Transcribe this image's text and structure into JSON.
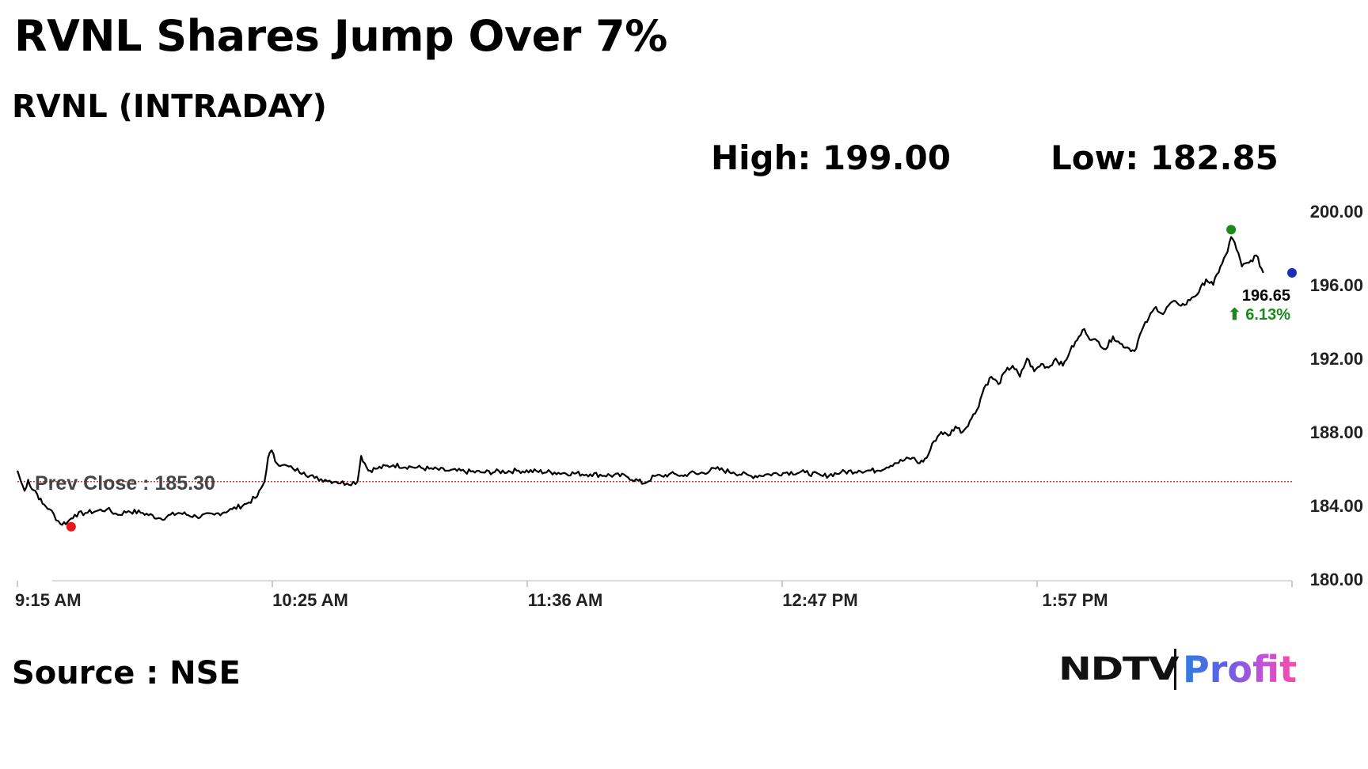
{
  "headline": "RVNL Shares Jump Over 7%",
  "subtitle": "RVNL (INTRADAY)",
  "stats": {
    "high": "High: 199.00",
    "low": "Low: 182.85"
  },
  "source": "Source : NSE",
  "logo": {
    "left": "NDTV",
    "right": "Profit",
    "colors": [
      "#2f7de1",
      "#c64fd8",
      "#ff4aa8"
    ]
  },
  "chart_data": {
    "type": "line",
    "title": "",
    "xlabel": "",
    "ylabel": "",
    "x_ticks": [
      "9:15 AM",
      "10:25 AM",
      "11:36 AM",
      "12:47 PM",
      "1:57 PM"
    ],
    "y_ticks": [
      "200.00",
      "196.00",
      "192.00",
      "188.00",
      "184.00",
      "180.00"
    ],
    "ylim": [
      180,
      200
    ],
    "xlim_minutes_after_open": [
      0,
      356
    ],
    "grid": false,
    "line_color": "#000000",
    "series": [
      {
        "x": [
          0,
          1,
          2,
          3,
          4,
          5,
          7,
          9,
          12,
          14,
          16,
          19,
          22,
          25,
          28,
          31,
          35,
          40,
          45,
          50,
          55,
          60,
          64,
          67,
          69,
          70,
          71,
          72,
          74,
          77,
          80,
          83,
          86,
          89,
          92,
          95,
          96,
          97,
          98,
          100,
          105,
          110,
          115,
          120,
          130,
          140,
          150,
          160,
          170,
          175,
          178,
          180,
          182,
          184,
          186,
          188,
          190,
          195,
          200,
          205,
          210,
          215,
          220,
          225,
          230,
          235,
          240,
          245,
          250,
          252,
          254,
          256,
          258,
          260,
          262,
          264,
          266,
          268,
          270,
          272,
          274,
          276,
          278,
          280,
          282,
          284,
          286,
          288,
          290,
          292,
          294,
          296,
          298,
          300,
          302,
          304,
          306,
          308,
          310,
          312,
          314,
          316,
          318,
          320,
          322,
          324,
          326,
          328,
          330,
          332,
          334,
          336,
          338,
          339,
          340,
          342,
          344,
          346,
          348
        ],
        "y": [
          185.9,
          185.3,
          184.8,
          185.4,
          184.9,
          184.8,
          184.1,
          183.8,
          183.0,
          183.1,
          183.5,
          183.6,
          183.7,
          183.8,
          183.5,
          183.7,
          183.6,
          183.3,
          183.6,
          183.4,
          183.5,
          183.8,
          184.1,
          184.5,
          185.3,
          186.6,
          187.0,
          186.4,
          186.2,
          186.0,
          185.8,
          185.5,
          185.4,
          185.3,
          185.2,
          185.3,
          186.7,
          186.3,
          185.9,
          186.0,
          186.2,
          186.1,
          186.0,
          185.9,
          185.8,
          185.9,
          185.8,
          185.7,
          185.6,
          185.2,
          185.6,
          185.6,
          185.7,
          185.7,
          185.6,
          185.8,
          185.7,
          186.0,
          185.8,
          185.6,
          185.7,
          185.8,
          185.8,
          185.6,
          185.8,
          185.9,
          185.9,
          186.3,
          186.6,
          186.3,
          186.6,
          187.5,
          188.0,
          187.8,
          188.3,
          188.0,
          188.6,
          189.2,
          190.4,
          191.0,
          190.6,
          191.3,
          191.6,
          191.0,
          192.0,
          191.3,
          191.7,
          191.5,
          192.0,
          191.6,
          192.4,
          193.0,
          193.6,
          193.0,
          192.9,
          192.5,
          193.2,
          192.8,
          192.6,
          192.4,
          193.5,
          194.2,
          194.8,
          194.4,
          195.0,
          195.0,
          194.9,
          195.3,
          195.6,
          196.3,
          196.0,
          197.0,
          197.8,
          198.6,
          198.3,
          197.0,
          197.2,
          197.6,
          196.65
        ]
      }
    ],
    "prev_close": {
      "label": "Prev Close : 185.30",
      "value": 185.3,
      "color": "#b22222"
    },
    "markers": [
      {
        "name": "low-marker",
        "x": 15,
        "y": 182.85,
        "color": "#e8191e"
      },
      {
        "name": "high-marker",
        "x": 339,
        "y": 199.0,
        "color": "#1a8a1a"
      },
      {
        "name": "last-marker",
        "x": 356,
        "y": 196.65,
        "color": "#1a2fb8"
      }
    ],
    "last_price": "196.65",
    "change": "⬆ 6.13%"
  }
}
